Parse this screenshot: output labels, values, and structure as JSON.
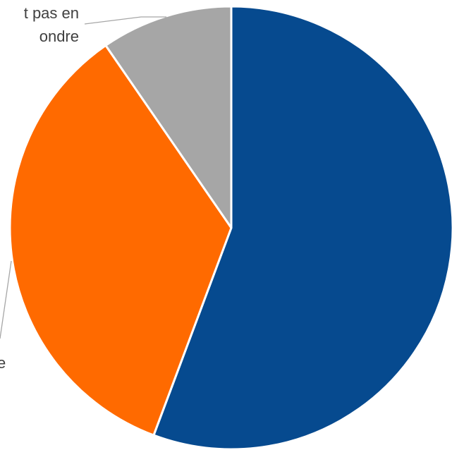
{
  "chart_data": {
    "type": "pie",
    "slices": [
      {
        "label_lines": [
          "",
          "e"
        ],
        "value": 55.7,
        "color": "#064a8f"
      },
      {
        "label_lines": [
          "",
          "e"
        ],
        "value": 34.7,
        "color": "#ff6a00"
      },
      {
        "label_lines": [
          "t pas en",
          "ondre"
        ],
        "value": 9.6,
        "color": "#a6a6a6"
      }
    ]
  }
}
